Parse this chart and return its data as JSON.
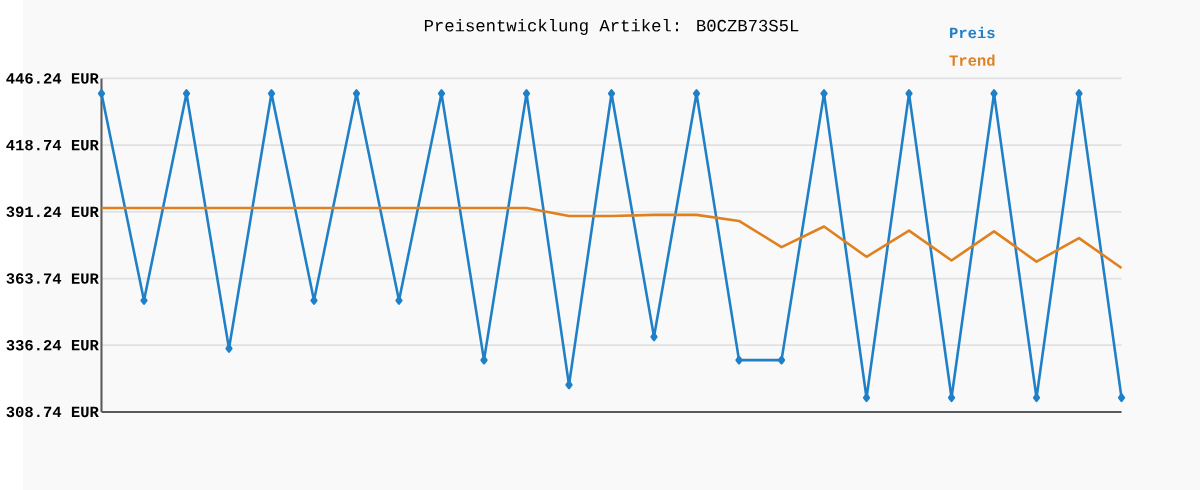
{
  "chart_data": {
    "type": "line",
    "title": "Preisentwicklung Artikel: B0CZB73S5L",
    "categories": [
      null,
      null,
      null,
      null,
      null,
      null,
      null,
      null,
      null,
      null,
      null,
      null,
      null,
      null,
      null,
      null,
      null,
      null,
      null,
      null,
      null,
      null,
      null,
      null,
      null
    ],
    "series": [
      {
        "name": "Preis",
        "color": "#1f80c8",
        "marker": "diamond",
        "values": [
          440.0,
          354.7,
          440.0,
          334.9,
          440.0,
          354.7,
          440.0,
          354.7,
          440.0,
          330.1,
          440.0,
          319.9,
          440.0,
          339.7,
          440.0,
          330.1,
          330.1,
          440.0,
          314.6,
          440.0,
          314.6,
          440.0,
          314.6,
          440.0,
          314.6
        ]
      },
      {
        "name": "Trend",
        "color": "#e08020",
        "marker": "none",
        "values": [
          392.8,
          392.8,
          392.8,
          392.8,
          392.8,
          392.8,
          392.8,
          392.8,
          392.8,
          392.8,
          392.8,
          389.5,
          389.5,
          390.0,
          390.0,
          387.5,
          376.7,
          385.2,
          372.7,
          383.5,
          371.2,
          383.2,
          370.7,
          380.4,
          368.1
        ]
      }
    ],
    "ylim": [
      308.74,
      446.24
    ],
    "yticks": [
      {
        "value": 308.74,
        "label": "308.74 EUR"
      },
      {
        "value": 336.24,
        "label": "336.24 EUR"
      },
      {
        "value": 363.74,
        "label": "363.74 EUR"
      },
      {
        "value": 391.24,
        "label": "391.24 EUR"
      },
      {
        "value": 418.74,
        "label": "418.74 EUR"
      },
      {
        "value": 446.24,
        "label": "446.24 EUR"
      }
    ],
    "grid": "y",
    "legend": "top right",
    "line_style": "solid"
  }
}
